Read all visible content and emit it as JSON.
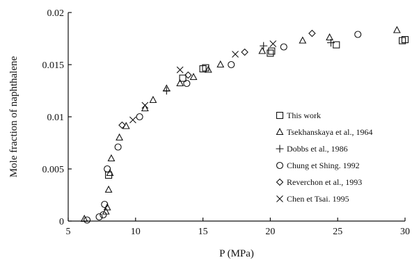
{
  "chart_data": {
    "type": "scatter",
    "xlabel": "P (MPa)",
    "ylabel": "Mole fraction of naphthalene",
    "xlim": [
      5,
      30
    ],
    "ylim": [
      0,
      0.02
    ],
    "x_ticks": [
      5,
      10,
      15,
      20,
      25,
      30
    ],
    "x_tick_labels": [
      "5",
      "10",
      "15",
      "20",
      "25",
      "30"
    ],
    "y_ticks": [
      0,
      0.005,
      0.01,
      0.015,
      0.02
    ],
    "y_tick_labels": [
      "0",
      "0.005",
      "0.01",
      "0.015",
      "0.02"
    ],
    "grid": false,
    "legend_position": "right",
    "series": [
      {
        "name": "This work",
        "marker": "square",
        "points": [
          [
            8.0,
            0.0044
          ],
          [
            13.5,
            0.0137
          ],
          [
            15.0,
            0.0146
          ],
          [
            15.2,
            0.0147
          ],
          [
            20.0,
            0.0161
          ],
          [
            20.1,
            0.0163
          ],
          [
            24.9,
            0.0169
          ],
          [
            29.8,
            0.0173
          ],
          [
            30.0,
            0.0174
          ]
        ]
      },
      {
        "name": "Tsekhanskaya et al., 1964",
        "marker": "triangle",
        "points": [
          [
            6.2,
            0.0002
          ],
          [
            7.8,
            0.0009
          ],
          [
            7.9,
            0.0013
          ],
          [
            8.0,
            0.003
          ],
          [
            8.1,
            0.0046
          ],
          [
            8.2,
            0.006
          ],
          [
            8.8,
            0.008
          ],
          [
            9.3,
            0.0091
          ],
          [
            10.7,
            0.0108
          ],
          [
            11.3,
            0.0116
          ],
          [
            12.3,
            0.0127
          ],
          [
            13.3,
            0.0132
          ],
          [
            14.3,
            0.0138
          ],
          [
            15.4,
            0.0145
          ],
          [
            16.3,
            0.015
          ],
          [
            19.4,
            0.0163
          ],
          [
            22.4,
            0.0173
          ],
          [
            24.4,
            0.0176
          ],
          [
            29.4,
            0.0183
          ]
        ]
      },
      {
        "name": "Dobbs et al., 1986",
        "marker": "plus",
        "points": [
          [
            12.3,
            0.0125
          ],
          [
            19.5,
            0.0168
          ],
          [
            24.5,
            0.0171
          ]
        ]
      },
      {
        "name": "Chung et Shing. 1992",
        "marker": "circle",
        "points": [
          [
            6.4,
            0.0001
          ],
          [
            7.3,
            0.0004
          ],
          [
            7.6,
            0.0006
          ],
          [
            7.7,
            0.0016
          ],
          [
            7.9,
            0.005
          ],
          [
            8.7,
            0.0071
          ],
          [
            10.3,
            0.01
          ],
          [
            13.8,
            0.0132
          ],
          [
            17.1,
            0.015
          ],
          [
            21.0,
            0.0167
          ],
          [
            26.5,
            0.0179
          ]
        ]
      },
      {
        "name": "Reverchon et al., 1993",
        "marker": "diamond",
        "points": [
          [
            9.0,
            0.0092
          ],
          [
            13.9,
            0.014
          ],
          [
            18.1,
            0.0162
          ],
          [
            23.1,
            0.018
          ]
        ]
      },
      {
        "name": "Chen et Tsai. 1995",
        "marker": "x",
        "points": [
          [
            9.8,
            0.0097
          ],
          [
            10.7,
            0.0111
          ],
          [
            13.3,
            0.0145
          ],
          [
            17.4,
            0.016
          ],
          [
            20.2,
            0.017
          ]
        ]
      }
    ]
  }
}
